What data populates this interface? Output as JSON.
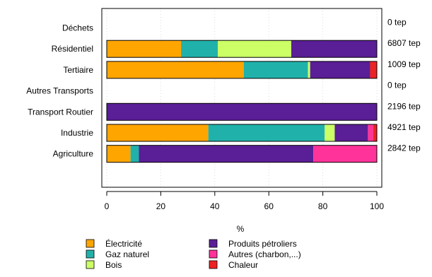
{
  "chart_data": {
    "type": "bar",
    "orientation": "horizontal",
    "stacked": true,
    "xlabel": "%",
    "xlim": [
      0,
      100
    ],
    "xticks": [
      0,
      20,
      40,
      60,
      80,
      100
    ],
    "grid": true,
    "legend_position": "bottom",
    "categories": [
      "Déchets",
      "Résidentiel",
      "Tertiaire",
      "Autres Transports",
      "Transport Routier",
      "Industrie",
      "Agriculture"
    ],
    "totals": [
      "0 tep",
      "6807 tep",
      "1009 tep",
      "0 tep",
      "2196 tep",
      "4921 tep",
      "2842 tep"
    ],
    "series": [
      {
        "name": "Électricité",
        "color": "#FFA500",
        "values": [
          0,
          27.5,
          50.7,
          0,
          0,
          37.6,
          8.8
        ]
      },
      {
        "name": "Gaz naturel",
        "color": "#20B2AA",
        "values": [
          0,
          13.6,
          23.8,
          0,
          0,
          43.1,
          3.1
        ]
      },
      {
        "name": "Bois",
        "color": "#CCFF66",
        "values": [
          0,
          27.2,
          0.8,
          0,
          0,
          3.7,
          0
        ]
      },
      {
        "name": "Produits pétroliers",
        "color": "#5A1E96",
        "values": [
          0,
          31.7,
          22.2,
          0,
          100,
          12.3,
          64.6
        ]
      },
      {
        "name": "Autres (charbon,...)",
        "color": "#FF3399",
        "values": [
          0,
          0,
          0,
          0,
          0,
          1.9,
          23.5
        ]
      },
      {
        "name": "Chaleur",
        "color": "#EE2222",
        "values": [
          0,
          0,
          2.5,
          0,
          0,
          1.4,
          0
        ]
      }
    ]
  }
}
